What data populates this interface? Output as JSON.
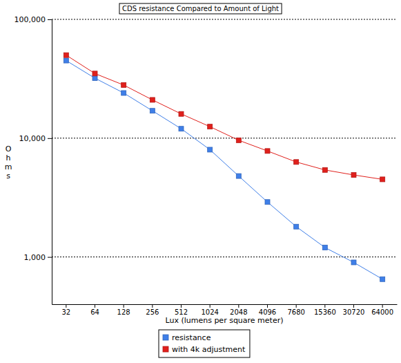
{
  "chart_data": {
    "type": "line",
    "title": "CDS resistance Compared to Amount of Light",
    "x_label": "Lux (lumens per square meter)",
    "y_label": "Ohms",
    "categories": [
      "32",
      "64",
      "128",
      "256",
      "512",
      "1024",
      "2048",
      "4096",
      "7680",
      "15360",
      "30720",
      "64000"
    ],
    "series": [
      {
        "name": "resistance",
        "color": "#3f7fe8",
        "marker": "square",
        "values": [
          45000,
          32000,
          24000,
          17000,
          12000,
          8000,
          4800,
          2900,
          1800,
          1200,
          900,
          650
        ]
      },
      {
        "name": "with 4k adjustment",
        "color": "#e0201c",
        "marker": "square",
        "values": [
          50000,
          35000,
          28000,
          21000,
          16000,
          12500,
          9600,
          7800,
          6300,
          5400,
          4900,
          4500
        ]
      }
    ],
    "log": "y",
    "ylim": [
      400,
      100000
    ],
    "yticks": [
      {
        "value": 1000,
        "label": "1,000"
      },
      {
        "value": 10000,
        "label": "10,000"
      },
      {
        "value": 100000,
        "label": "100,000"
      }
    ],
    "grid": true,
    "legend": "bottom"
  }
}
